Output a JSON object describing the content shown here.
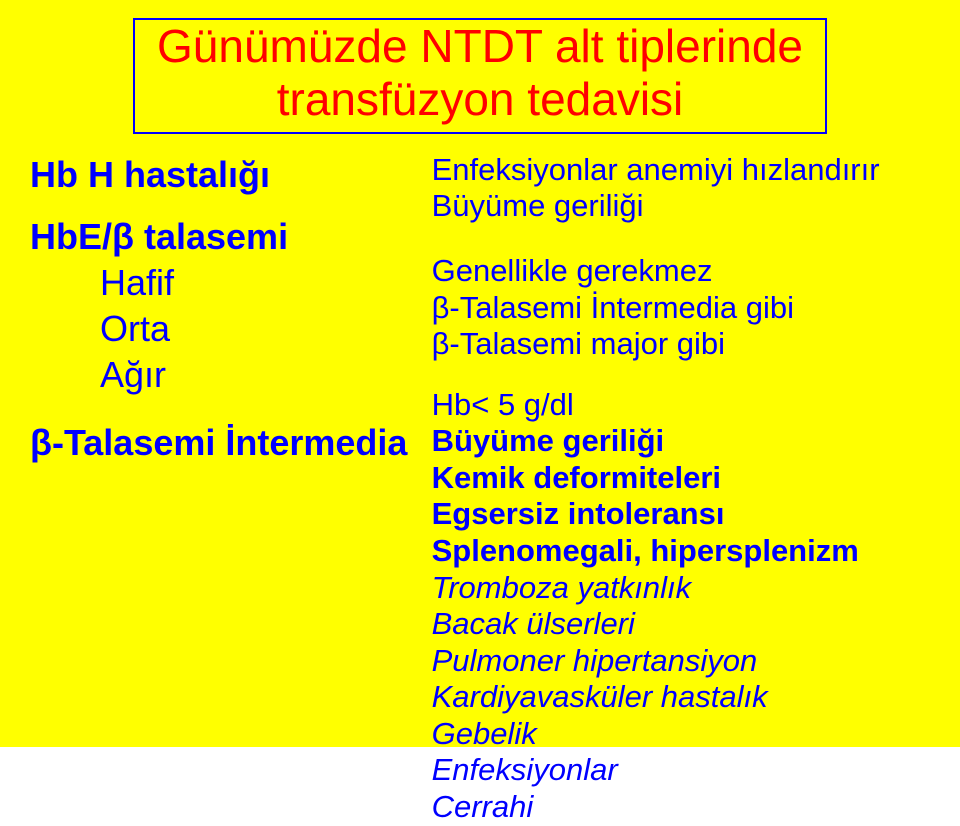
{
  "colors": {
    "background": "#ffff00",
    "title_color": "#ff0000",
    "box_color": "#0000ff",
    "text_color": "#0000ff"
  },
  "title": {
    "line1": "Günümüzde NTDT alt tiplerinde",
    "line2": "transfüzyon tedavisi"
  },
  "left": {
    "row1": "Hb H hastalığı",
    "row2_head": "HbE/β talasemi",
    "row2_sub1": "Hafif",
    "row2_sub2": "Orta",
    "row2_sub3": "Ağır",
    "row3": "β-Talasemi İntermedia"
  },
  "right": {
    "g1_l1": "Enfeksiyonlar anemiyi hızlandırır",
    "g1_l2": "Büyüme geriliği",
    "g2_l1": "Genellikle gerekmez",
    "g2_l2": "β-Talasemi İntermedia gibi",
    "g2_l3": "β-Talasemi major gibi",
    "g3_l1": "Hb< 5 g/dl",
    "g3_l2": "Büyüme geriliği",
    "g3_l3": "Kemik deformiteleri",
    "g3_l4": "Egsersiz intoleransı",
    "g3_l5": "Splenomegali, hipersplenizm",
    "g3_l6": "Tromboza yatkınlık",
    "g3_l7": "Bacak ülserleri",
    "g3_l8": "Pulmoner hipertansiyon",
    "g3_l9": "Kardiyavasküler hastalık",
    "g3_l10": "Gebelik",
    "g3_l11": "Enfeksiyonlar",
    "g3_l12": "Cerrahi"
  }
}
